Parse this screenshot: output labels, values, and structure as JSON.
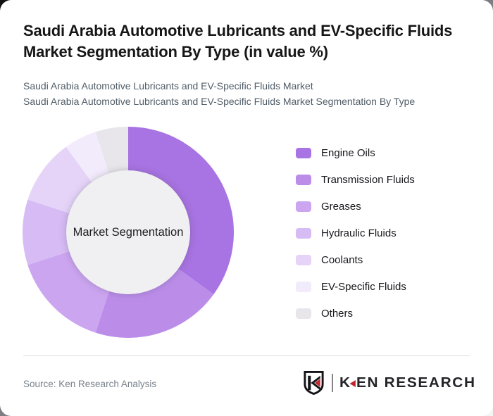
{
  "header": {
    "title": "Saudi Arabia Automotive Lubricants and EV-Specific Fluids Market Segmentation By Type (in value %)",
    "subtitle_line1": "Saudi Arabia Automotive Lubricants and EV-Specific Fluids Market",
    "subtitle_line2": "Saudi Arabia Automotive Lubricants and EV-Specific Fluids Market Segmentation By Type"
  },
  "chart_data": {
    "type": "pie",
    "variant": "donut",
    "title": "Saudi Arabia Automotive Lubricants and EV-Specific Fluids Market Segmentation By Type (in value %)",
    "center_label": "Market Segmentation",
    "legend_position": "right",
    "values_unit": "percent of market value",
    "start_angle_deg": 0,
    "direction": "clockwise",
    "inner_circle_color": "#f0eff1",
    "segments": [
      {
        "label": "Engine Oils",
        "value": 35,
        "color": "#a873e2"
      },
      {
        "label": "Transmission Fluids",
        "value": 20,
        "color": "#bb8de9"
      },
      {
        "label": "Greases",
        "value": 15,
        "color": "#cba5f0"
      },
      {
        "label": "Hydraulic Fluids",
        "value": 10,
        "color": "#d6bbf4"
      },
      {
        "label": "Coolants",
        "value": 10,
        "color": "#e5d4f8"
      },
      {
        "label": "EV-Specific Fluids",
        "value": 5,
        "color": "#f2ebfc"
      },
      {
        "label": "Others",
        "value": 5,
        "color": "#e8e6ea"
      }
    ]
  },
  "footer": {
    "source": "Source: Ken Research Analysis",
    "logo": {
      "monogram": "K",
      "brand_first_letter": "K",
      "brand_rest": "EN RESEARCH",
      "accent_color": "#c0262c"
    }
  }
}
